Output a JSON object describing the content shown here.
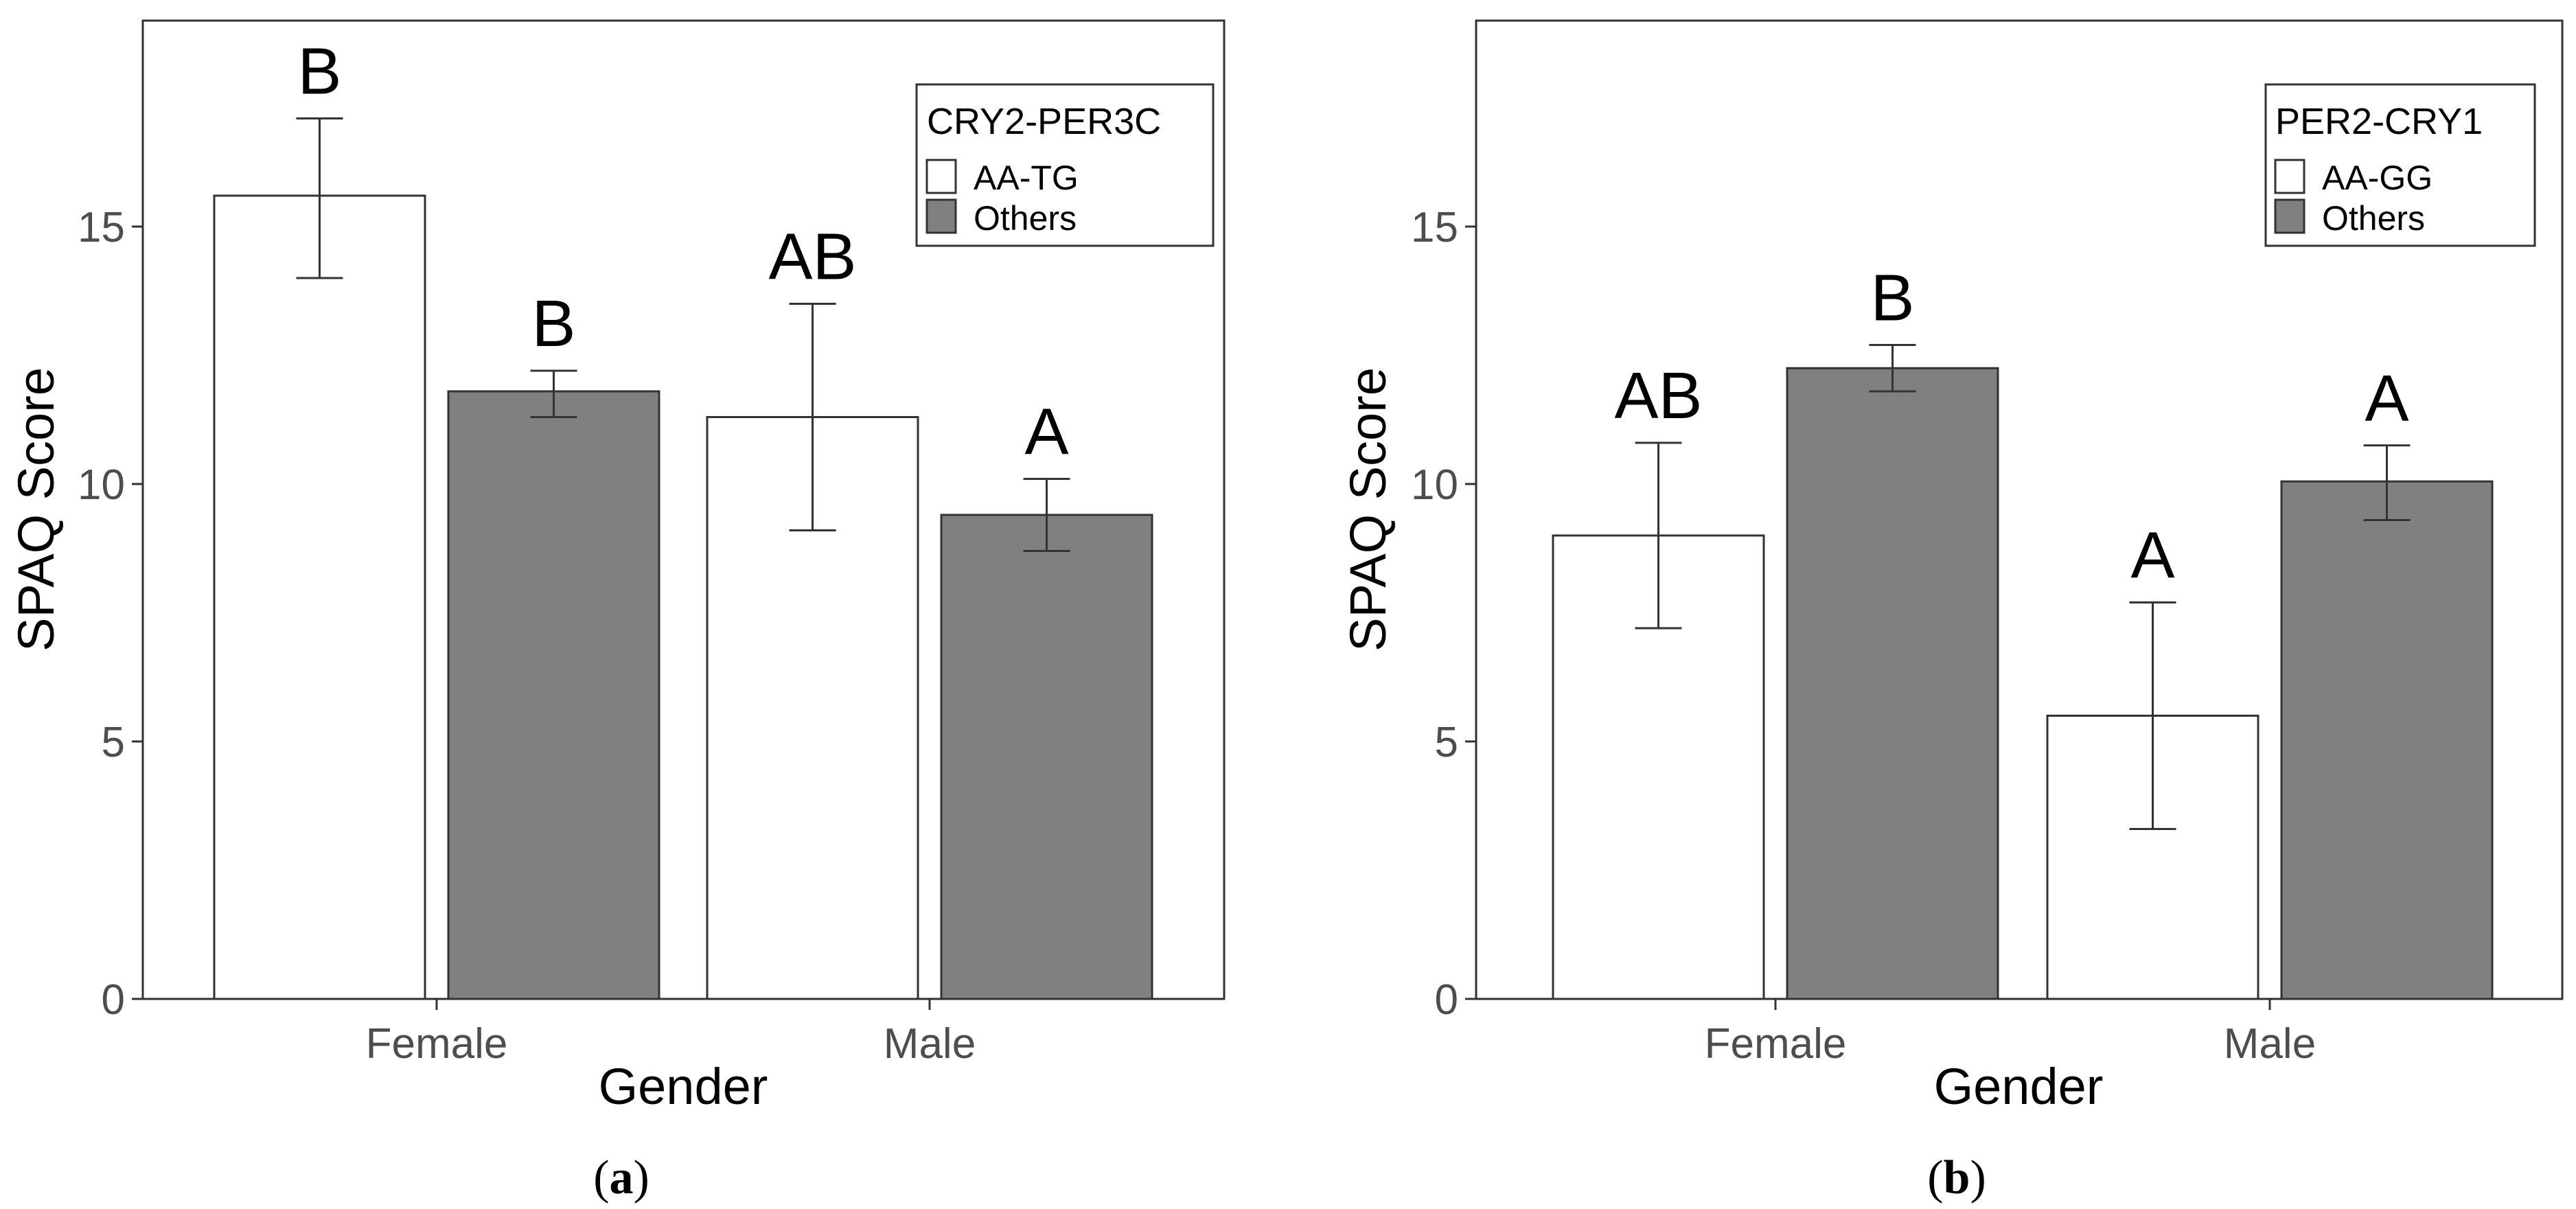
{
  "chart_data": [
    {
      "type": "bar",
      "panel": "(a)",
      "panel_letter": "a",
      "xlabel": "Gender",
      "ylabel": "SPAQ Score",
      "ylim": [
        0,
        19
      ],
      "yticks": [
        0,
        5,
        10,
        15
      ],
      "categories": [
        "Female",
        "Male"
      ],
      "legend_title": "CRY2-PER3C",
      "series": [
        {
          "name": "AA-TG",
          "color": "#ffffff",
          "values": [
            15.6,
            11.3
          ],
          "err_low": [
            14.0,
            9.1
          ],
          "err_high": [
            17.1,
            13.5
          ],
          "labels": [
            "B",
            "AB"
          ]
        },
        {
          "name": "Others",
          "color": "#808080",
          "values": [
            11.8,
            9.4
          ],
          "err_low": [
            11.3,
            8.7
          ],
          "err_high": [
            12.2,
            10.1
          ],
          "labels": [
            "B",
            "A"
          ]
        }
      ]
    },
    {
      "type": "bar",
      "panel": "(b)",
      "panel_letter": "b",
      "xlabel": "Gender",
      "ylabel": "SPAQ Score",
      "ylim": [
        0,
        19
      ],
      "yticks": [
        0,
        5,
        10,
        15
      ],
      "categories": [
        "Female",
        "Male"
      ],
      "legend_title": "PER2-CRY1",
      "series": [
        {
          "name": "AA-GG",
          "color": "#ffffff",
          "values": [
            9.0,
            5.5
          ],
          "err_low": [
            7.2,
            3.3
          ],
          "err_high": [
            10.8,
            7.7
          ],
          "labels": [
            "AB",
            "A"
          ]
        },
        {
          "name": "Others",
          "color": "#808080",
          "values": [
            12.25,
            10.05
          ],
          "err_low": [
            11.8,
            9.3
          ],
          "err_high": [
            12.7,
            10.75
          ],
          "labels": [
            "B",
            "A"
          ]
        }
      ]
    }
  ]
}
